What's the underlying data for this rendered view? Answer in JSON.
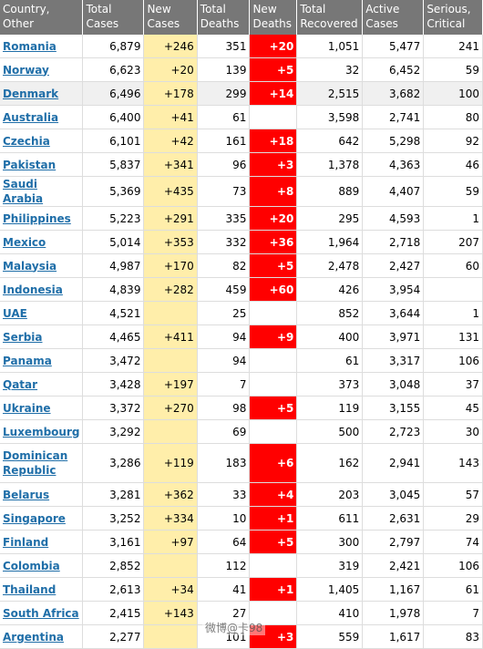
{
  "columns": [
    "Country,\nOther",
    "Total\nCases",
    "New\nCases",
    "Total\nDeaths",
    "New\nDeaths",
    "Total\nRecovered",
    "Active\nCases",
    "Serious,\nCritical"
  ],
  "col_keys": [
    "country",
    "total_cases",
    "new_cases",
    "total_deaths",
    "new_deaths",
    "total_recovered",
    "active_cases",
    "serious_critical"
  ],
  "highlight_color": "#ff0000",
  "new_cases_color": "#ffeeaa",
  "watermark": "微博@卡98",
  "rows": [
    {
      "country": "Romania",
      "total_cases": "6,879",
      "new_cases": "+246",
      "total_deaths": "351",
      "new_deaths": "+20",
      "total_recovered": "1,051",
      "active_cases": "5,477",
      "serious_critical": "241"
    },
    {
      "country": "Norway",
      "total_cases": "6,623",
      "new_cases": "+20",
      "total_deaths": "139",
      "new_deaths": "+5",
      "total_recovered": "32",
      "active_cases": "6,452",
      "serious_critical": "59"
    },
    {
      "country": "Denmark",
      "total_cases": "6,496",
      "new_cases": "+178",
      "total_deaths": "299",
      "new_deaths": "+14",
      "total_recovered": "2,515",
      "active_cases": "3,682",
      "serious_critical": "100"
    },
    {
      "country": "Australia",
      "total_cases": "6,400",
      "new_cases": "+41",
      "total_deaths": "61",
      "new_deaths": "",
      "total_recovered": "3,598",
      "active_cases": "2,741",
      "serious_critical": "80"
    },
    {
      "country": "Czechia",
      "total_cases": "6,101",
      "new_cases": "+42",
      "total_deaths": "161",
      "new_deaths": "+18",
      "total_recovered": "642",
      "active_cases": "5,298",
      "serious_critical": "92"
    },
    {
      "country": "Pakistan",
      "total_cases": "5,837",
      "new_cases": "+341",
      "total_deaths": "96",
      "new_deaths": "+3",
      "total_recovered": "1,378",
      "active_cases": "4,363",
      "serious_critical": "46"
    },
    {
      "country": "Saudi Arabia",
      "total_cases": "5,369",
      "new_cases": "+435",
      "total_deaths": "73",
      "new_deaths": "+8",
      "total_recovered": "889",
      "active_cases": "4,407",
      "serious_critical": "59"
    },
    {
      "country": "Philippines",
      "total_cases": "5,223",
      "new_cases": "+291",
      "total_deaths": "335",
      "new_deaths": "+20",
      "total_recovered": "295",
      "active_cases": "4,593",
      "serious_critical": "1"
    },
    {
      "country": "Mexico",
      "total_cases": "5,014",
      "new_cases": "+353",
      "total_deaths": "332",
      "new_deaths": "+36",
      "total_recovered": "1,964",
      "active_cases": "2,718",
      "serious_critical": "207"
    },
    {
      "country": "Malaysia",
      "total_cases": "4,987",
      "new_cases": "+170",
      "total_deaths": "82",
      "new_deaths": "+5",
      "total_recovered": "2,478",
      "active_cases": "2,427",
      "serious_critical": "60"
    },
    {
      "country": "Indonesia",
      "total_cases": "4,839",
      "new_cases": "+282",
      "total_deaths": "459",
      "new_deaths": "+60",
      "total_recovered": "426",
      "active_cases": "3,954",
      "serious_critical": ""
    },
    {
      "country": "UAE",
      "total_cases": "4,521",
      "new_cases": "",
      "total_deaths": "25",
      "new_deaths": "",
      "total_recovered": "852",
      "active_cases": "3,644",
      "serious_critical": "1"
    },
    {
      "country": "Serbia",
      "total_cases": "4,465",
      "new_cases": "+411",
      "total_deaths": "94",
      "new_deaths": "+9",
      "total_recovered": "400",
      "active_cases": "3,971",
      "serious_critical": "131"
    },
    {
      "country": "Panama",
      "total_cases": "3,472",
      "new_cases": "",
      "total_deaths": "94",
      "new_deaths": "",
      "total_recovered": "61",
      "active_cases": "3,317",
      "serious_critical": "106"
    },
    {
      "country": "Qatar",
      "total_cases": "3,428",
      "new_cases": "+197",
      "total_deaths": "7",
      "new_deaths": "",
      "total_recovered": "373",
      "active_cases": "3,048",
      "serious_critical": "37"
    },
    {
      "country": "Ukraine",
      "total_cases": "3,372",
      "new_cases": "+270",
      "total_deaths": "98",
      "new_deaths": "+5",
      "total_recovered": "119",
      "active_cases": "3,155",
      "serious_critical": "45"
    },
    {
      "country": "Luxembourg",
      "total_cases": "3,292",
      "new_cases": "",
      "total_deaths": "69",
      "new_deaths": "",
      "total_recovered": "500",
      "active_cases": "2,723",
      "serious_critical": "30"
    },
    {
      "country": "Dominican Republic",
      "total_cases": "3,286",
      "new_cases": "+119",
      "total_deaths": "183",
      "new_deaths": "+6",
      "total_recovered": "162",
      "active_cases": "2,941",
      "serious_critical": "143"
    },
    {
      "country": "Belarus",
      "total_cases": "3,281",
      "new_cases": "+362",
      "total_deaths": "33",
      "new_deaths": "+4",
      "total_recovered": "203",
      "active_cases": "3,045",
      "serious_critical": "57"
    },
    {
      "country": "Singapore",
      "total_cases": "3,252",
      "new_cases": "+334",
      "total_deaths": "10",
      "new_deaths": "+1",
      "total_recovered": "611",
      "active_cases": "2,631",
      "serious_critical": "29"
    },
    {
      "country": "Finland",
      "total_cases": "3,161",
      "new_cases": "+97",
      "total_deaths": "64",
      "new_deaths": "+5",
      "total_recovered": "300",
      "active_cases": "2,797",
      "serious_critical": "74"
    },
    {
      "country": "Colombia",
      "total_cases": "2,852",
      "new_cases": "",
      "total_deaths": "112",
      "new_deaths": "",
      "total_recovered": "319",
      "active_cases": "2,421",
      "serious_critical": "106"
    },
    {
      "country": "Thailand",
      "total_cases": "2,613",
      "new_cases": "+34",
      "total_deaths": "41",
      "new_deaths": "+1",
      "total_recovered": "1,405",
      "active_cases": "1,167",
      "serious_critical": "61"
    },
    {
      "country": "South Africa",
      "total_cases": "2,415",
      "new_cases": "+143",
      "total_deaths": "27",
      "new_deaths": "",
      "total_recovered": "410",
      "active_cases": "1,978",
      "serious_critical": "7"
    },
    {
      "country": "Argentina",
      "total_cases": "2,277",
      "new_cases": "",
      "total_deaths": "101",
      "new_deaths": "+3",
      "total_recovered": "559",
      "active_cases": "1,617",
      "serious_critical": "83"
    }
  ]
}
